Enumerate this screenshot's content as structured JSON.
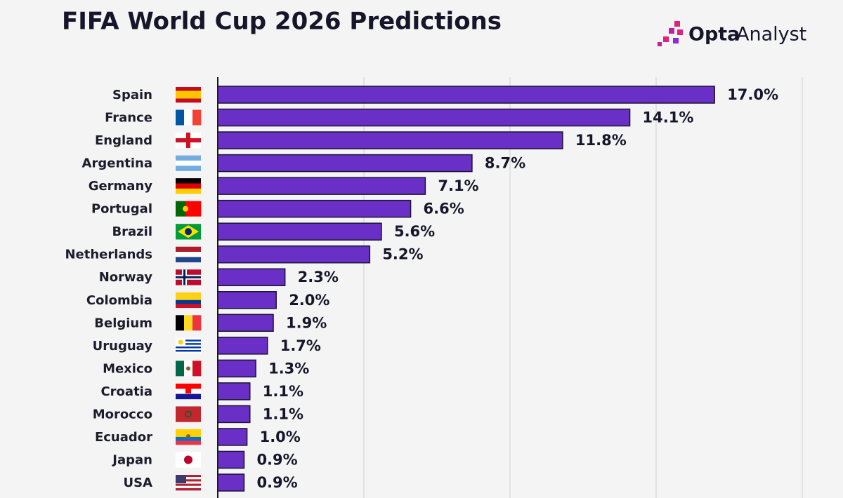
{
  "chart_data": {
    "type": "bar",
    "orientation": "horizontal",
    "title": "FIFA World Cup 2026 Predictions",
    "logo": [
      "Opta",
      "Analyst"
    ],
    "categories": [
      "Spain",
      "France",
      "England",
      "Argentina",
      "Germany",
      "Portugal",
      "Brazil",
      "Netherlands",
      "Norway",
      "Colombia",
      "Belgium",
      "Uruguay",
      "Mexico",
      "Croatia",
      "Morocco",
      "Ecuador",
      "Japan",
      "USA"
    ],
    "values": [
      17.0,
      14.1,
      11.8,
      8.7,
      7.1,
      6.6,
      5.6,
      5.2,
      2.3,
      2.0,
      1.9,
      1.7,
      1.3,
      1.1,
      1.1,
      1.0,
      0.9,
      0.9
    ],
    "value_labels": [
      "17.0%",
      "14.1%",
      "11.8%",
      "8.7%",
      "7.1%",
      "6.6%",
      "5.6%",
      "5.2%",
      "2.3%",
      "2.0%",
      "1.9%",
      "1.7%",
      "1.3%",
      "1.1%",
      "1.1%",
      "1.0%",
      "0.9%",
      "0.9%"
    ],
    "color": "#6a2fc6",
    "xlim": [
      0,
      20
    ],
    "xticks": [
      0,
      5,
      10,
      15,
      20
    ],
    "grid": true
  }
}
